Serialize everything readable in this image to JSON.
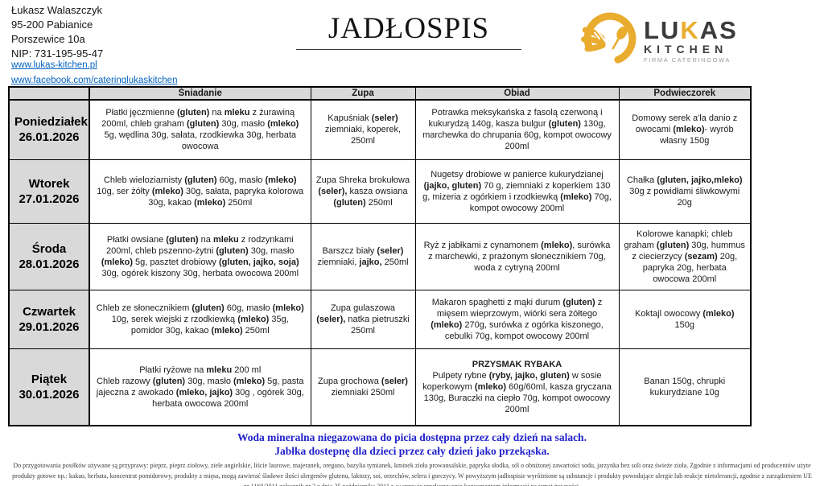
{
  "colors": {
    "accent_yellow": "#E9AC2E",
    "link_blue": "#0563C1",
    "note_blue": "#2222CC",
    "header_gray": "#D9D9D9"
  },
  "header": {
    "contact": {
      "name": "Łukasz Walaszczyk",
      "postal": "95-200 Pabianice",
      "street": "Porszewice 10a",
      "nip": "NIP: 731-195-95-47"
    },
    "links": {
      "website": "www.lukas-kitchen.pl",
      "facebook": "www.facebook.com/cateringlukaskitchen"
    },
    "title": "JADŁOSPIS",
    "logo": {
      "l1_pre": "LU",
      "l1_accent": "K",
      "l1_post": "AS",
      "l2": "KITCHEN",
      "l3": "FIRMA CATERINGOWA"
    }
  },
  "menu": {
    "columns": [
      "Śniadanie",
      "Zupa",
      "Obiad",
      "Podwieczorek"
    ],
    "rows": [
      {
        "day": "Poniedziałek",
        "date": "26.01.2026",
        "sniadanie": "Płatki jęczmienne  **(gluten)** na **mleku** z żurawiną 200ml, chleb graham **(gluten)** 30g, masło **(mleko)** 5g, wędlina 30g, sałata, rzodkiewka 30g, herbata owocowa",
        "zupa": "Kapuśniak **(seler)** ziemniaki, koperek, 250ml",
        "obiad": "Potrawka meksykańska z fasolą czerwoną i kukurydzą 140g, kasza bulgur **(gluten)** 130g, marchewka do chrupania 60g, kompot owocowy 200ml",
        "podwieczorek": "Domowy serek a'la danio z owocami **(mleko)**- wyrób własny 150g"
      },
      {
        "day": "Wtorek",
        "date": "27.01.2026",
        "sniadanie": "Chleb wieloziarnisty **(gluten)**  60g, masło **(mleko)** 10g, ser żółty **(mleko)** 30g, sałata, papryka kolorowa 30g, kakao **(mleko)** 250ml",
        "zupa": "Zupa Shreka brokułowa **(seler),** kasza owsiana **(gluten)** 250ml",
        "obiad": "Nugetsy drobiowe w panierce kukurydzianej  **(jajko, gluten)** 70 g, ziemniaki z koperkiem 130 g, mizeria z ogórkiem i rzodkiewką **(mleko)** 70g, kompot owocowy 200ml",
        "podwieczorek": "Chałka **(gluten, jajko,mleko)** 30g z powidłami śliwkowymi  20g"
      },
      {
        "day": "Środa",
        "date": "28.01.2026",
        "sniadanie": "Płatki owsiane **(gluten)**  na  **mleku** z rodzynkami 200ml, chleb pszenno-żytni **(gluten)**  30g, masło **(mleko)** 5g, pasztet drobiowy **(gluten, jajko, soja)** 30g, ogórek kiszony 30g, herbata owocowa 200ml",
        "zupa": "Barszcz biały  **(seler)** ziemniaki, **jajko,** 250ml",
        "obiad": "Ryż z jabłkami z cynamonem **(mleko)**, surówka z marchewki, z prażonym słonecznikiem 70g, woda z cytryną 200ml",
        "podwieczorek": "Kolorowe kanapki; chleb graham **(gluten)** 30g, hummus z ciecierzycy **(sezam)** 20g, papryka 20g, herbata owocowa 200ml"
      },
      {
        "day": "Czwartek",
        "date": "29.01.2026",
        "sniadanie": "Chleb ze słonecznikiem **(gluten)**  60g, masło **(mleko)** 10g, serek wiejski z rzodkiewką **(mleko)** 35g, pomidor 30g, kakao **(mleko)** 250ml",
        "zupa": "Zupa gulaszowa **(seler),** natka pietruszki 250ml",
        "obiad": "Makaron spaghetti z mąki durum **(gluten)** z mięsem wieprzowym, wiórki sera żółtego **(mleko)** 270g, surówka z ogórka kiszonego, cebulki 70g, kompot owocowy 200ml",
        "podwieczorek": "Koktajl owocowy **(mleko)** 150g"
      },
      {
        "day": "Piątek",
        "date": "30.01.2026",
        "sniadanie": "Płatki ryżowe na **mleku** 200 ml\nChleb razowy **(gluten)** 30g, masło **(mleko)** 5g, pasta jajeczna z awokado **(mleko, jajko)**  30g , ogórek 30g, herbata owocowa 200ml",
        "zupa": "Zupa grochowa **(seler)** ziemniaki 250ml",
        "obiad": "**PRZYSMAK RYBAKA**\nPulpety rybne **(ryby, jajko, gluten)** w sosie koperkowym **(mleko)**  60g/60ml, kasza gryczana 130g, Buraczki na ciepło 70g, kompot owocowy 200ml",
        "podwieczorek": "Banan 150g, chrupki kukurydziane 10g"
      }
    ]
  },
  "notes": {
    "line1": "Woda mineralna niegazowana do picia dostępna przez cały dzień na salach.",
    "line2": "Jabłka dostepnę dla dzieci przez cały dzień jako przekąska."
  },
  "footer": {
    "disclaimer": "Do przygotowania posiłków używane są przyprawy: pieprz, pieprz ziołowy, ziele angielskie, liście laurowe, majeranek, oregano, bazylia tymianek, kminek zioła prowansalskie, papryka słodka, sól o obniżonej zawartości sodu, jarzynka bez soli oraz świeże zioła. Zgodnie z informacjami od producentów użyte produkty gotowe np.: kakao, herbata, koncentrat pomidorowy, produkty z mięsa, mogą zawierać śladowe ilości alergenów glutenu, laktozy, soi, orzechów,   selera i gorczycy. W powyższym jadłospisie wyróżnione są substancje i produkty powodujące alergie lub reakcje nietolerancji, zgodnie z zarządzeniem UE nr 1169/2011 załącznik nr 2 z dnia 25 października 2011 r. w sprawie przekazywania konsumentom informacji na temat żywności."
  }
}
